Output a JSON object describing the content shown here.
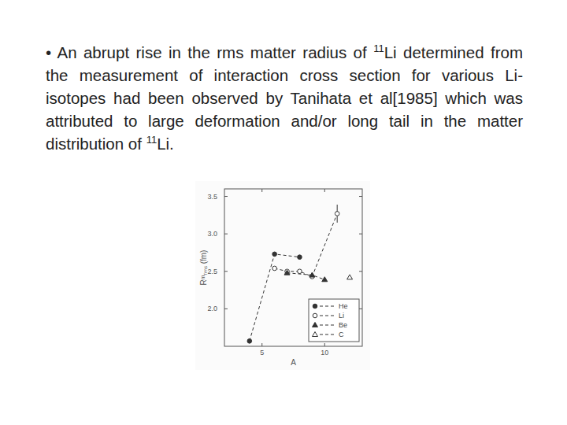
{
  "slide": {
    "bullet": [
      {
        "text": "• An abrupt rise in the rms matter radius of "
      },
      {
        "sup": "11"
      },
      {
        "text": "Li determined from the measurement of interaction cross section for various Li-isotopes had been observed by Tanihata et al[1985] which was attributed to large deformation and/or long tail in the matter distribution of "
      },
      {
        "sup": "11"
      },
      {
        "text": "Li."
      }
    ]
  },
  "chart_data": {
    "type": "line",
    "x_label": "A",
    "y_label": "Rᵐᵣₘₛ (fm)",
    "xlim": [
      2,
      13
    ],
    "xticks": [
      5,
      10
    ],
    "ylim": [
      1.5,
      3.6
    ],
    "yticks": [
      {
        "value": 2.0,
        "label": "2.0"
      },
      2.5,
      {
        "value": 3.0,
        "label": "3.0"
      },
      3.5
    ],
    "legend": "lower right",
    "series": [
      {
        "name": "He",
        "color": "#333333",
        "marker": "filled-circle",
        "line_style": "dashed",
        "x": [
          4,
          6,
          8
        ],
        "values": [
          1.57,
          2.73,
          2.69
        ]
      },
      {
        "name": "Li",
        "color": "#333333",
        "marker": "open-circle",
        "line_style": "dashed",
        "x": [
          6,
          7,
          8,
          9,
          11
        ],
        "values": [
          2.54,
          2.5,
          2.5,
          2.43,
          3.27
        ],
        "errors": [
          null,
          null,
          null,
          null,
          0.12
        ]
      },
      {
        "name": "Be",
        "color": "#333333",
        "marker": "filled-triangle",
        "line_style": "dashed",
        "x": [
          7,
          9,
          10
        ],
        "values": [
          2.48,
          2.45,
          2.39
        ]
      },
      {
        "name": "C",
        "color": "#333333",
        "marker": "open-triangle",
        "line_style": "dashed",
        "x": [
          12
        ],
        "values": [
          2.42
        ]
      }
    ]
  }
}
